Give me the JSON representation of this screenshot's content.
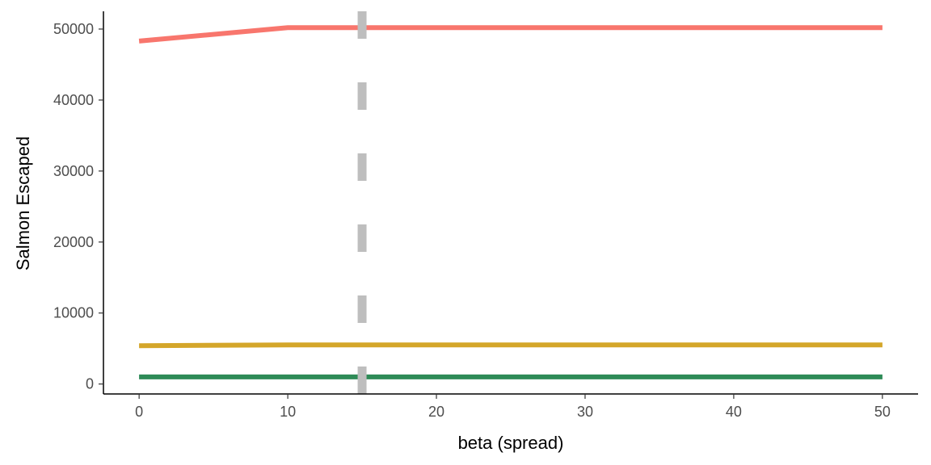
{
  "chart_data": {
    "type": "line",
    "title": "",
    "xlabel": "beta (spread)",
    "ylabel": "Salmon Escaped",
    "xlim": [
      -2.4,
      52.4
    ],
    "ylim": [
      -1400,
      52500
    ],
    "x_ticks": [
      0,
      10,
      20,
      30,
      40,
      50
    ],
    "y_ticks": [
      0,
      10000,
      20000,
      30000,
      40000,
      50000
    ],
    "grid": false,
    "legend": "none",
    "series": [
      {
        "color": "#F8766D",
        "x": [
          0,
          10,
          50
        ],
        "y": [
          48300,
          50200,
          50200
        ]
      },
      {
        "color": "#D4A62A",
        "x": [
          0,
          10,
          50
        ],
        "y": [
          5400,
          5500,
          5500
        ]
      },
      {
        "color": "#2E8B57",
        "x": [
          0,
          10,
          50
        ],
        "y": [
          1000,
          1000,
          1000
        ]
      }
    ],
    "reference_lines": [
      {
        "orientation": "vertical",
        "x": 15,
        "color": "#BEBEBE",
        "style": "dashed"
      }
    ]
  }
}
